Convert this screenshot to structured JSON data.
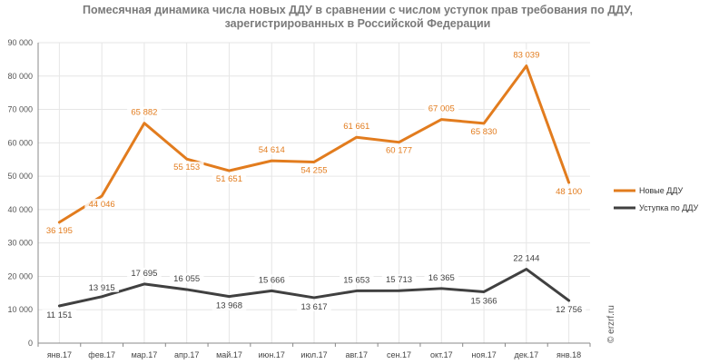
{
  "title_line1": "Помесячная динамика числа новых ДДУ в сравнении с числом уступок прав требования по ДДУ,",
  "title_line2": "зарегистрированных в Российской Федерации",
  "watermark": "© erzrf.ru",
  "colors": {
    "series_a": "#e27c1e",
    "series_b": "#404040",
    "grid": "#e6e6e6",
    "axis": "#888888"
  },
  "chart_data": {
    "type": "line",
    "categories": [
      "янв.17",
      "фев.17",
      "мар.17",
      "апр.17",
      "май.17",
      "июн.17",
      "июл.17",
      "авг.17",
      "сен.17",
      "окт.17",
      "ноя.17",
      "дек.17",
      "янв.18"
    ],
    "yticks": [
      "0",
      "10 000",
      "20 000",
      "30 000",
      "40 000",
      "50 000",
      "60 000",
      "70 000",
      "80 000",
      "90 000"
    ],
    "ylim": [
      0,
      90000
    ],
    "grid": true,
    "legend_position": "right",
    "series": [
      {
        "name": "Новые ДДУ",
        "values": [
          36195,
          44046,
          65882,
          55153,
          51651,
          54614,
          54255,
          61661,
          60177,
          67005,
          65830,
          83039,
          48100
        ],
        "labels": [
          "36 195",
          "44 046",
          "65 882",
          "55 153",
          "51 651",
          "54 614",
          "54 255",
          "61 661",
          "60 177",
          "67 005",
          "65 830",
          "83 039",
          "48 100"
        ]
      },
      {
        "name": "Уступка по ДДУ",
        "values": [
          11151,
          13915,
          17695,
          16055,
          13968,
          15666,
          13617,
          15653,
          15713,
          16365,
          15366,
          22144,
          12756
        ],
        "labels": [
          "11 151",
          "13 915",
          "17 695",
          "16 055",
          "13 968",
          "15 666",
          "13 617",
          "15 653",
          "15 713",
          "16 365",
          "15 366",
          "22 144",
          "12 756"
        ]
      }
    ]
  }
}
